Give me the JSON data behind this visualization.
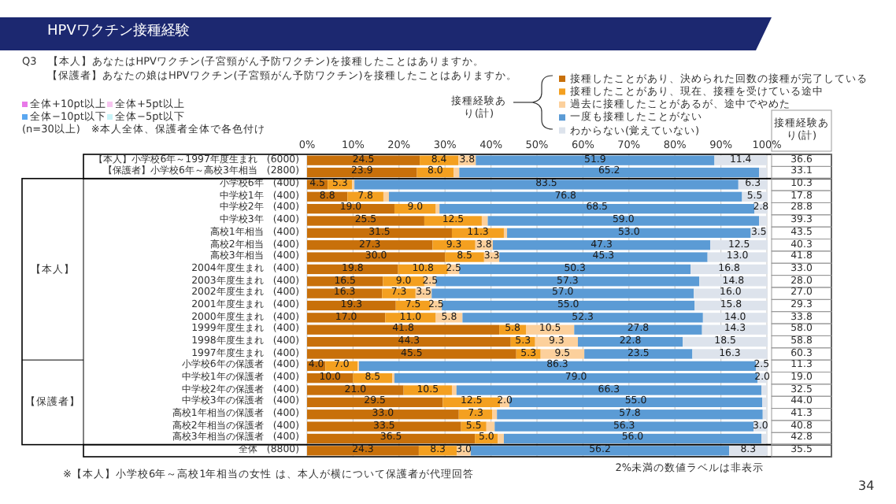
{
  "chart_data": [
    {
      "type": "bar",
      "orientation": "horizontal",
      "stacked": true,
      "title": "HPVワクチン接種経験",
      "subtitle": "Q3　【本人】あなたはHPVワクチン(子宮頸がん予防ワクチン)を接種したことはありますか。",
      "categories": [
        "【本人】小学校6年～1997年度生まれ　(6000)",
        "【保護者】小学校6年～高校3年相当　(2800)",
        "小学校6年　(400)",
        "中学校1年　(400)",
        "中学校2年　(400)",
        "中学校3年　(400)",
        "高校1年相当　(400)",
        "高校2年相当　(400)",
        "高校3年相当　(400)",
        "2004年度生まれ　(400)",
        "2003年度生まれ　(400)",
        "2002年度生まれ　(400)",
        "2001年度生まれ　(400)",
        "2000年度生まれ　(400)",
        "1999年度生まれ　(400)",
        "1998年度生まれ　(400)",
        "1997年度生まれ　(400)",
        "小学校6年の保護者　(400)",
        "中学校1年の保護者　(400)",
        "中学校2年の保護者　(400)",
        "中学校3年の保護者　(400)",
        "高校1年相当の保護者　(400)",
        "高校2年相当の保護者　(400)",
        "高校3年相当の保護者　(400)",
        "全体　(8800)"
      ],
      "series": [
        {
          "name": "接種したことがあり、決められた回数の接種が完了している",
          "color": "#c8700a",
          "values": [
            24.5,
            23.9,
            4.5,
            8.8,
            19.0,
            25.5,
            31.5,
            27.3,
            30.0,
            19.8,
            16.5,
            16.3,
            19.3,
            17.0,
            41.8,
            44.3,
            45.5,
            4.0,
            10.0,
            21.0,
            29.5,
            33.0,
            33.5,
            36.5,
            24.3
          ],
          "value_labels": [
            "24.5",
            "23.9",
            "4.5",
            "8.8",
            "19.0",
            "25.5",
            "31.5",
            "27.3",
            "30.0",
            "19.8",
            "16.5",
            "16.3",
            "19.3",
            "17.0",
            "41.8",
            "44.3",
            "45.5",
            "4.0",
            "10.0",
            "21.0",
            "29.5",
            "33.0",
            "33.5",
            "36.5",
            "24.3"
          ]
        },
        {
          "name": "接種したことがあり、現在、接種を受けている途中",
          "color": "#f4a020",
          "values": [
            8.4,
            8.0,
            5.3,
            7.8,
            9.0,
            12.5,
            11.3,
            9.3,
            8.5,
            10.8,
            9.0,
            7.3,
            7.5,
            11.0,
            5.8,
            5.3,
            5.3,
            7.0,
            8.5,
            10.5,
            12.5,
            7.3,
            5.5,
            5.0,
            8.3
          ],
          "value_labels": [
            "8.4",
            "8.0",
            "5.3",
            "7.8",
            "9.0",
            "12.5",
            "11.3",
            "9.3",
            "8.5",
            "10.8",
            "9.0",
            "7.3",
            "7.5",
            "11.0",
            "5.8",
            "5.3",
            "5.3",
            "7.0",
            "8.5",
            "10.5",
            "12.5",
            "7.3",
            "5.5",
            "5.0",
            "8.3"
          ]
        },
        {
          "name": "過去に接種したことがあるが、途中でやめた",
          "color": "#fcd09c",
          "values": [
            3.8,
            1.2,
            0.5,
            1.2,
            0.8,
            1.3,
            0.7,
            3.8,
            3.3,
            2.5,
            2.5,
            3.5,
            2.5,
            5.8,
            10.5,
            9.3,
            9.5,
            0.3,
            0.5,
            1.0,
            2.0,
            1.0,
            1.8,
            1.3,
            3.0
          ],
          "value_labels": [
            "3.8",
            null,
            null,
            null,
            null,
            null,
            null,
            "3.8",
            "3.3",
            "2.5",
            "2.5",
            "3.5",
            "2.5",
            "5.8",
            "10.5",
            "9.3",
            "9.5",
            null,
            null,
            null,
            "2.0",
            null,
            null,
            null,
            "3.0"
          ]
        },
        {
          "name": "一度も接種したことがない",
          "color": "#5b9bd5",
          "values": [
            51.9,
            65.2,
            83.5,
            76.8,
            68.5,
            59.0,
            53.0,
            47.3,
            45.3,
            50.3,
            57.3,
            57.0,
            55.0,
            52.3,
            27.8,
            22.8,
            23.5,
            86.3,
            79.0,
            66.3,
            55.0,
            57.8,
            56.3,
            56.0,
            56.2
          ],
          "value_labels": [
            "51.9",
            "65.2",
            "83.5",
            "76.8",
            "68.5",
            "59.0",
            "53.0",
            "47.3",
            "45.3",
            "50.3",
            "57.3",
            "57.0",
            "55.0",
            "52.3",
            "27.8",
            "22.8",
            "23.5",
            "86.3",
            "79.0",
            "66.3",
            "55.0",
            "57.8",
            "56.3",
            "56.0",
            "56.2"
          ]
        },
        {
          "name": "わからない(覚えていない)",
          "color": "#dde3ec",
          "values": [
            11.4,
            1.7,
            6.3,
            5.5,
            2.8,
            1.7,
            3.5,
            12.5,
            13.0,
            16.8,
            14.8,
            16.0,
            15.8,
            14.0,
            14.3,
            18.5,
            16.3,
            2.5,
            2.0,
            1.2,
            1.0,
            0.9,
            3.0,
            1.2,
            8.3
          ],
          "value_labels": [
            "11.4",
            null,
            "6.3",
            "5.5",
            "2.8",
            null,
            "3.5",
            "12.5",
            "13.0",
            "16.8",
            "14.8",
            "16.0",
            "15.8",
            "14.0",
            "14.3",
            "18.5",
            "16.3",
            "2.5",
            "2.0",
            null,
            null,
            null,
            "3.0",
            null,
            "8.3"
          ]
        }
      ],
      "xlim": [
        0,
        100
      ],
      "xticks": [
        {
          "value": 0,
          "label": "0%"
        },
        {
          "value": 10,
          "label": "10%"
        },
        {
          "value": 20,
          "label": "20%"
        },
        {
          "value": 30,
          "label": "30%"
        },
        {
          "value": 40,
          "label": "40%"
        },
        {
          "value": 50,
          "label": "50%"
        },
        {
          "value": 60,
          "label": "60%"
        },
        {
          "value": 70,
          "label": "70%"
        },
        {
          "value": 80,
          "label": "80%"
        },
        {
          "value": 90,
          "label": "90%"
        },
        {
          "value": 100,
          "label": "100%"
        }
      ],
      "grid": "x",
      "legend": "top right",
      "annotations": [
        "【本人】",
        "【保護者】",
        "全体+10pt以上",
        "全体+5pt以上",
        "全体−10pt以下",
        "全体−5pt以下",
        "(n=30以上)　※本人全体、保護者全体で各色付け",
        "接種経験あり(計)",
        "【保護者】あなたの娘はHPVワクチン(子宮頸がん予防ワクチン)を接種したことはありますか。",
        "※【本人】小学校6年～高校1年相当の女性 は、本人が横について保護者が代理回答",
        "2%未満の数値ラベルは非表示",
        "34"
      ]
    },
    {
      "type": "other",
      "title": "接種経験あり(計)",
      "value_labels": [
        "36.6",
        "33.1",
        "10.3",
        "17.8",
        "28.8",
        "39.3",
        "43.5",
        "40.3",
        "41.8",
        "33.0",
        "28.0",
        "27.0",
        "29.3",
        "33.8",
        "58.0",
        "58.8",
        "60.3",
        "11.3",
        "19.0",
        "32.5",
        "44.0",
        "41.3",
        "40.8",
        "42.8",
        "35.5"
      ]
    }
  ]
}
